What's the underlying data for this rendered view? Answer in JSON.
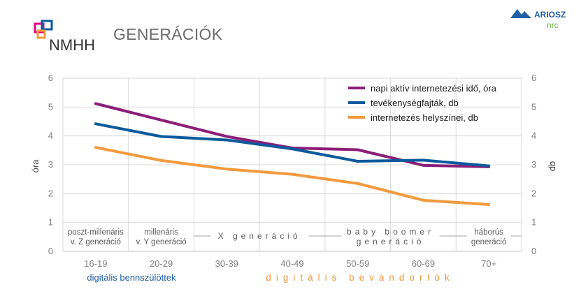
{
  "header": {
    "title": "GENERÁCIÓK",
    "logo_left_text": "NMHH",
    "logo_right_text": "ARIOSZ",
    "logo_right_sub": "nrc"
  },
  "colors": {
    "series_purple": "#8b1e78",
    "series_blue": "#0a5a9c",
    "series_orange": "#f39a3e",
    "digital_natives": "#1f5fa8",
    "digital_immigrants": "#f3963a",
    "grid": "#d9d9d9"
  },
  "chart_data": {
    "type": "line",
    "categories": [
      "16-19",
      "20-29",
      "30-39",
      "40-49",
      "50-59",
      "60-69",
      "70+"
    ],
    "series": [
      {
        "name": "napi aktív internetezési idő, óra",
        "axis": "left",
        "values": [
          5.12,
          4.55,
          3.98,
          3.58,
          3.52,
          2.98,
          2.93
        ]
      },
      {
        "name": "tevékenységfajták, db",
        "axis": "right",
        "values": [
          4.42,
          3.98,
          3.86,
          3.55,
          3.12,
          3.16,
          2.96
        ]
      },
      {
        "name": "internetezés helyszínei, db",
        "axis": "right",
        "values": [
          3.6,
          3.15,
          2.85,
          2.67,
          2.35,
          1.77,
          1.62
        ]
      }
    ],
    "ylabel_left": "óra",
    "ylabel_right": "db",
    "ylim": [
      0,
      6
    ],
    "yticks": [
      "0",
      "1",
      "2",
      "3",
      "4",
      "5",
      "6"
    ],
    "grid": true,
    "legend_position": "top-right",
    "generation_labels": [
      {
        "lines": [
          "poszt-millenáris",
          "v. Z generáció"
        ],
        "span": [
          0,
          1
        ],
        "spaced": false
      },
      {
        "lines": [
          "millenáris",
          "v. Y generáció"
        ],
        "span": [
          1,
          2
        ],
        "spaced": false
      },
      {
        "lines": [
          "X generáció"
        ],
        "span": [
          2,
          4
        ],
        "spaced": true
      },
      {
        "lines": [
          "baby boomer",
          "generáció"
        ],
        "span": [
          4,
          6
        ],
        "spaced": true
      },
      {
        "lines": [
          "háborús",
          "generáció"
        ],
        "span": [
          6,
          7
        ],
        "spaced": false
      }
    ],
    "group_labels": {
      "natives": "digitális bennszülöttek",
      "immigrants": "digitális bevándorlók"
    }
  }
}
